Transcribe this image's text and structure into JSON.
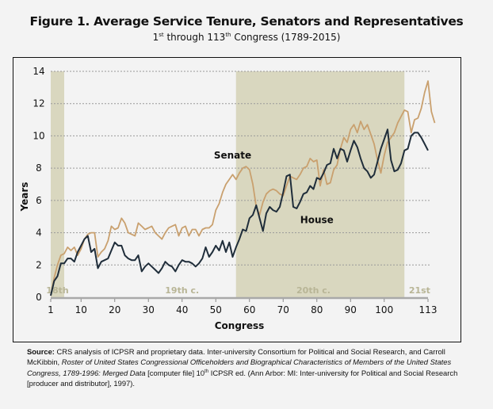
{
  "header": {
    "title": "Figure 1. Average Service Tenure, Senators and Representatives",
    "subtitle_parts": [
      "1",
      "st",
      " through 113",
      "th",
      " Congress (1789-2015)"
    ]
  },
  "source": {
    "label": "Source:",
    "text1": " CRS analysis of ICPSR and proprietary data. Inter-university Consortium for Political and Social Research, and Carroll McKibbin, ",
    "italic": "Roster of United States Congressional Officeholders and Biographical Characteristics of Members of the United States Congress, 1789-1996: Merged Data",
    "text2": " [computer file] 10",
    "sup": "th",
    "text3": " ICPSR ed. (Ann Arbor: MI: Inter-university for Political and Social Research [producer and distributor], 1997)."
  },
  "chart_data": {
    "type": "line",
    "title": "Figure 1. Average Service Tenure, Senators and Representatives",
    "subtitle": "1st through 113th Congress (1789-2015)",
    "xlabel": "Congress",
    "ylabel": "Years",
    "xlim": [
      1,
      113
    ],
    "ylim": [
      0,
      14
    ],
    "x_ticks": [
      1,
      10,
      20,
      30,
      40,
      50,
      60,
      70,
      80,
      90,
      100,
      113
    ],
    "y_ticks": [
      0,
      2,
      4,
      6,
      8,
      10,
      12,
      14
    ],
    "grid": "horizontal-dashed",
    "colors": {
      "senate": "#c9a06e",
      "house": "#1f2d3a",
      "band": "#d9d7bf",
      "band_label": "#b8b596"
    },
    "century_bands": [
      {
        "label": "18th",
        "from": 1,
        "to": 5,
        "shaded": true
      },
      {
        "label": "19th c.",
        "from": 5,
        "to": 56,
        "shaded": false
      },
      {
        "label": "20th c.",
        "from": 56,
        "to": 106,
        "shaded": true
      },
      {
        "label": "21st",
        "from": 106,
        "to": 113,
        "shaded": false
      }
    ],
    "annotations": [
      {
        "text": "Senate",
        "x": 55,
        "y": 8.6
      },
      {
        "text": "House",
        "x": 80,
        "y": 4.6
      }
    ],
    "series": [
      {
        "name": "Senate",
        "values": [
          0.1,
          1.2,
          2.0,
          2.6,
          2.7,
          3.1,
          2.9,
          3.1,
          2.6,
          3.0,
          3.6,
          3.9,
          4.0,
          4.0,
          2.5,
          2.8,
          3.0,
          3.5,
          4.4,
          4.2,
          4.3,
          4.9,
          4.6,
          4.0,
          3.9,
          3.8,
          4.6,
          4.4,
          4.2,
          4.3,
          4.4,
          4.0,
          3.8,
          3.6,
          4.0,
          4.3,
          4.4,
          4.5,
          3.8,
          4.3,
          4.4,
          3.8,
          4.2,
          4.2,
          3.8,
          4.2,
          4.3,
          4.3,
          4.5,
          5.4,
          5.8,
          6.5,
          7.0,
          7.3,
          7.6,
          7.3,
          7.7,
          8.0,
          8.1,
          7.9,
          7.0,
          5.6,
          5.1,
          5.9,
          6.4,
          6.6,
          6.7,
          6.6,
          6.4,
          6.3,
          6.9,
          7.5,
          7.4,
          7.3,
          7.6,
          8.0,
          8.1,
          8.6,
          8.4,
          8.5,
          6.9,
          7.9,
          7.0,
          7.1,
          7.9,
          8.2,
          9.2,
          9.9,
          9.6,
          10.4,
          10.7,
          10.2,
          10.9,
          10.4,
          10.7,
          10.1,
          9.5,
          8.5,
          7.7,
          8.8,
          9.6,
          9.9,
          10.2,
          10.8,
          11.2,
          11.6,
          11.5,
          10.2,
          11.0,
          11.1,
          11.7,
          12.7,
          13.4,
          11.5,
          10.8
        ]
      },
      {
        "name": "House",
        "values": [
          0.1,
          1.0,
          1.3,
          2.1,
          2.1,
          2.4,
          2.4,
          2.2,
          2.8,
          3.2,
          3.6,
          3.8,
          2.8,
          3.0,
          1.8,
          2.2,
          2.3,
          2.4,
          2.9,
          3.4,
          3.2,
          3.2,
          2.6,
          2.4,
          2.3,
          2.3,
          2.6,
          1.6,
          1.9,
          2.1,
          1.9,
          1.7,
          1.5,
          1.8,
          2.2,
          2.0,
          1.9,
          1.6,
          2.0,
          2.3,
          2.2,
          2.2,
          2.1,
          1.9,
          2.1,
          2.4,
          3.1,
          2.5,
          2.8,
          3.2,
          2.9,
          3.5,
          2.8,
          3.4,
          2.5,
          3.1,
          3.6,
          4.2,
          4.1,
          4.9,
          5.1,
          5.7,
          4.9,
          4.1,
          5.2,
          5.6,
          5.4,
          5.3,
          5.6,
          6.5,
          7.5,
          7.6,
          5.6,
          5.5,
          5.9,
          6.4,
          6.5,
          6.9,
          6.7,
          7.4,
          7.3,
          7.7,
          8.2,
          8.3,
          9.2,
          8.6,
          9.2,
          9.1,
          8.4,
          9.1,
          9.7,
          9.3,
          8.6,
          8.0,
          7.8,
          7.4,
          7.6,
          8.4,
          9.2,
          9.8,
          10.4,
          8.5,
          7.8,
          7.9,
          8.3,
          9.1,
          9.2,
          10.0,
          10.2,
          10.2,
          9.9,
          9.5,
          9.1
        ]
      }
    ]
  }
}
